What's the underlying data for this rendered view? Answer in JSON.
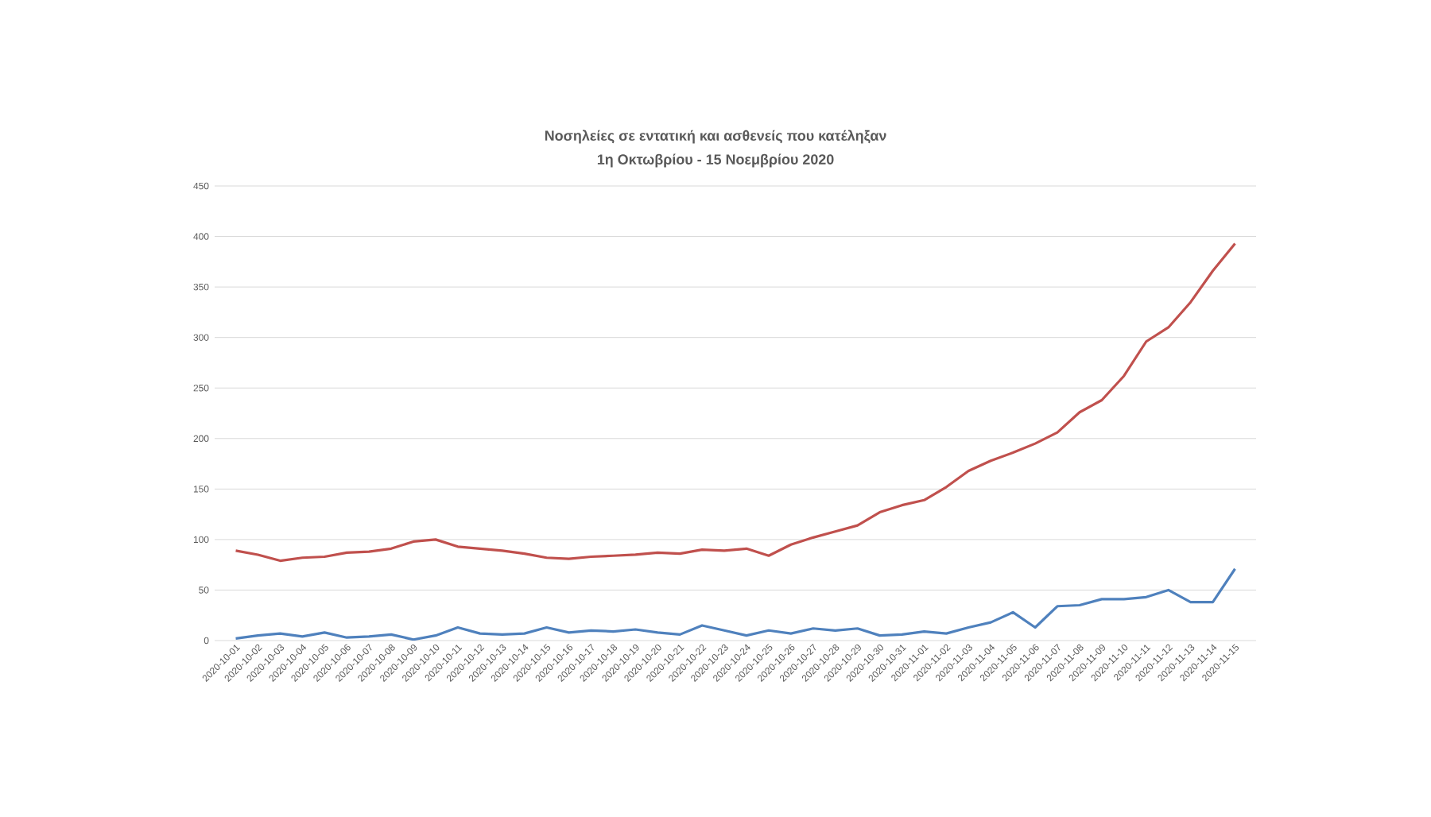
{
  "chart_data": {
    "type": "line",
    "title": "Νοσηλείες σε εντατική και ασθενείς που κατέληξαν",
    "subtitle": "1η Οκτωβρίου - 15 Νοεμβρίου 2020",
    "categories": [
      "2020-10-01",
      "2020-10-02",
      "2020-10-03",
      "2020-10-04",
      "2020-10-05",
      "2020-10-06",
      "2020-10-07",
      "2020-10-08",
      "2020-10-09",
      "2020-10-10",
      "2020-10-11",
      "2020-10-12",
      "2020-10-13",
      "2020-10-14",
      "2020-10-15",
      "2020-10-16",
      "2020-10-17",
      "2020-10-18",
      "2020-10-19",
      "2020-10-20",
      "2020-10-21",
      "2020-10-22",
      "2020-10-23",
      "2020-10-24",
      "2020-10-25",
      "2020-10-26",
      "2020-10-27",
      "2020-10-28",
      "2020-10-29",
      "2020-10-30",
      "2020-10-31",
      "2020-11-01",
      "2020-11-02",
      "2020-11-03",
      "2020-11-04",
      "2020-11-05",
      "2020-11-06",
      "2020-11-07",
      "2020-11-08",
      "2020-11-09",
      "2020-11-10",
      "2020-11-11",
      "2020-11-12",
      "2020-11-13",
      "2020-11-14",
      "2020-11-15"
    ],
    "series": [
      {
        "color": "#c0504d",
        "values": [
          89,
          85,
          79,
          82,
          83,
          87,
          88,
          91,
          98,
          100,
          93,
          91,
          89,
          86,
          82,
          81,
          83,
          84,
          85,
          87,
          86,
          90,
          89,
          91,
          84,
          95,
          102,
          108,
          114,
          127,
          134,
          139,
          152,
          168,
          178,
          186,
          195,
          206,
          226,
          238,
          262,
          296,
          310,
          335,
          366,
          393
        ]
      },
      {
        "color": "#4f81bd",
        "values": [
          2,
          5,
          7,
          4,
          8,
          3,
          4,
          6,
          1,
          5,
          13,
          7,
          6,
          7,
          13,
          8,
          10,
          9,
          11,
          8,
          6,
          15,
          10,
          5,
          10,
          7,
          12,
          10,
          12,
          5,
          6,
          9,
          7,
          13,
          18,
          28,
          13,
          34,
          35,
          41,
          41,
          43,
          50,
          38,
          38,
          71
        ]
      }
    ],
    "ylim": [
      0,
      450
    ],
    "yticks": [
      0,
      50,
      100,
      150,
      200,
      250,
      300,
      350,
      400,
      450
    ],
    "grid": "y",
    "marker": "none",
    "line_style": "solid"
  }
}
